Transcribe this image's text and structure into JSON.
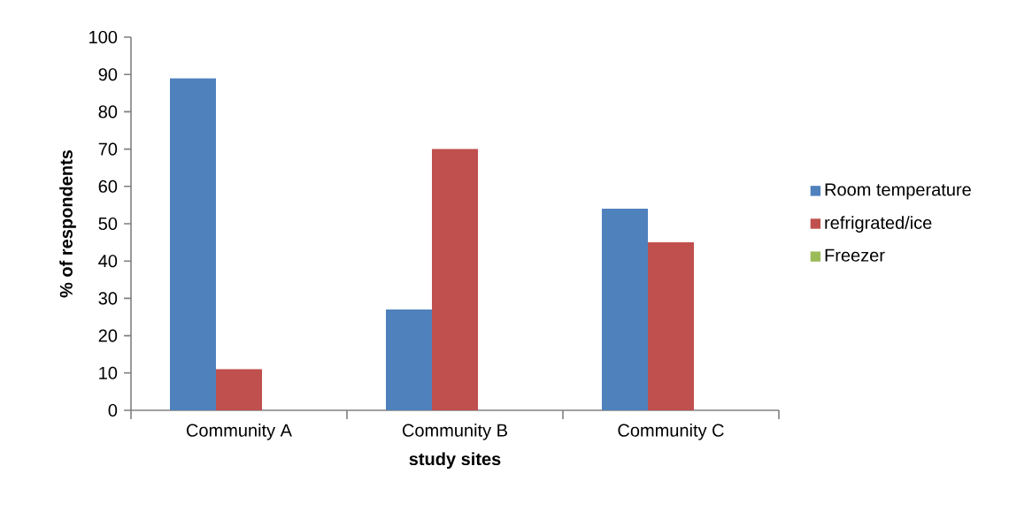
{
  "chart_data": {
    "type": "bar",
    "xlabel": "study sites",
    "ylabel": "% of respondents",
    "categories": [
      "Community A",
      "Community B",
      "Community C"
    ],
    "series": [
      {
        "name": "Room temperature",
        "color": "#4f81bd",
        "values": [
          89,
          27,
          54
        ]
      },
      {
        "name": "refrigrated/ice",
        "color": "#c0504d",
        "values": [
          11,
          70,
          45
        ]
      },
      {
        "name": "Freezer",
        "color": "#9bbb59",
        "values": [
          0,
          0,
          0
        ]
      }
    ],
    "ylim": [
      0,
      100
    ],
    "yticks": [
      0,
      10,
      20,
      30,
      40,
      50,
      60,
      70,
      80,
      90,
      100
    ],
    "legend": "right"
  }
}
